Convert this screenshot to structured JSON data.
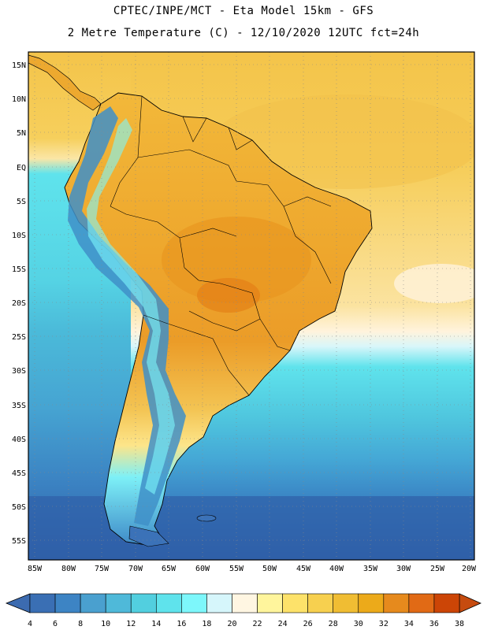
{
  "title": "CPTEC/INPE/MCT -  Eta Model 15km - GFS",
  "subtitle": "2 Metre Temperature (C) - 12/10/2020 12UTC fct=24h",
  "lat_labels": [
    "15N",
    "10N",
    "5N",
    "EQ",
    "5S",
    "10S",
    "15S",
    "20S",
    "25S",
    "30S",
    "35S",
    "40S",
    "45S",
    "50S",
    "55S"
  ],
  "lon_labels": [
    "85W",
    "80W",
    "75W",
    "70W",
    "65W",
    "60W",
    "55W",
    "50W",
    "45W",
    "40W",
    "35W",
    "30W",
    "25W",
    "20W"
  ],
  "colorbar": {
    "ticks": [
      "4",
      "6",
      "8",
      "10",
      "12",
      "14",
      "16",
      "18",
      "20",
      "22",
      "24",
      "26",
      "28",
      "30",
      "32",
      "34",
      "36",
      "38"
    ],
    "colors": [
      "#3a6fb4",
      "#3d84c4",
      "#4aa0cf",
      "#4fb9d9",
      "#52cfdf",
      "#5fe3ec",
      "#7df7fb",
      "#d6f6fb",
      "#fff6e2",
      "#fff59c",
      "#fde26a",
      "#f7d04f",
      "#f0bd33",
      "#ecaa1a",
      "#e68a1d",
      "#e16a15",
      "#cc4506"
    ],
    "low_color": "#3c6bb0",
    "high_color": "#c64b0f"
  },
  "colors": {
    "ocean_cold": "#2f5fa8",
    "ocean_cool": "#3f9fd0",
    "ocean_mid": "#55d8e6",
    "land_warm": "#f0b83a",
    "land_hot": "#e79a2a",
    "ocean_warm": "#f8d060",
    "andes": "#3b72b8"
  }
}
